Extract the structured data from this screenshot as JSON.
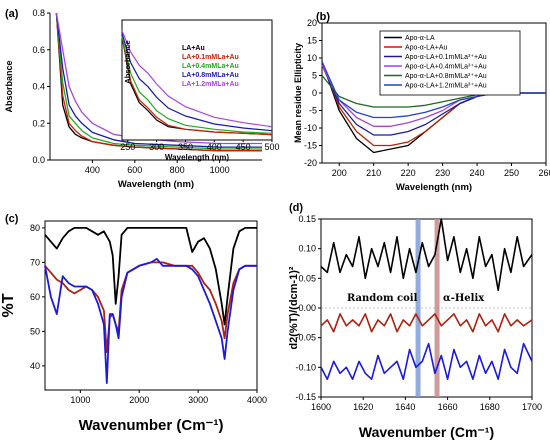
{
  "chart_data": [
    {
      "panel": "(a)",
      "type": "line",
      "xlabel": "Wavelength (nm)",
      "ylabel": "Absorbance",
      "xlim": [
        200,
        1200
      ],
      "ylim": [
        0,
        0.8
      ],
      "xticks": [
        400,
        600,
        800,
        1000
      ],
      "yticks": [
        0.0,
        0.2,
        0.4,
        0.6,
        0.8
      ],
      "legend_position": "top-right",
      "series": [
        {
          "name": "LA+Au",
          "color": "#000000",
          "x": [
            230,
            260,
            290,
            320,
            350,
            400,
            500,
            600,
            800,
            1000,
            1200
          ],
          "y": [
            0.8,
            0.3,
            0.18,
            0.14,
            0.12,
            0.1,
            0.08,
            0.07,
            0.06,
            0.05,
            0.05
          ]
        },
        {
          "name": "LA+0.1mMLa+Au",
          "color": "#cc2200",
          "x": [
            230,
            260,
            290,
            320,
            350,
            400,
            500,
            600,
            800,
            1000,
            1200
          ],
          "y": [
            0.8,
            0.35,
            0.2,
            0.16,
            0.13,
            0.1,
            0.08,
            0.07,
            0.06,
            0.05,
            0.05
          ]
        },
        {
          "name": "LA+0.4mMLa+Au",
          "color": "#22aa22",
          "x": [
            230,
            260,
            290,
            320,
            350,
            400,
            500,
            600,
            800,
            1000,
            1200
          ],
          "y": [
            0.8,
            0.42,
            0.24,
            0.2,
            0.16,
            0.12,
            0.09,
            0.08,
            0.07,
            0.06,
            0.06
          ]
        },
        {
          "name": "LA+0.8mMLa+Au",
          "color": "#1a1aaa",
          "x": [
            230,
            260,
            290,
            320,
            350,
            400,
            500,
            600,
            800,
            1000,
            1200
          ],
          "y": [
            0.8,
            0.5,
            0.3,
            0.24,
            0.2,
            0.15,
            0.11,
            0.09,
            0.08,
            0.07,
            0.07
          ]
        },
        {
          "name": "LA+1.2mMLa+Au",
          "color": "#aa44dd",
          "x": [
            230,
            260,
            290,
            320,
            350,
            400,
            500,
            600,
            800,
            1000,
            1200
          ],
          "y": [
            0.8,
            0.6,
            0.4,
            0.32,
            0.26,
            0.2,
            0.14,
            0.12,
            0.1,
            0.09,
            0.09
          ]
        }
      ],
      "inset": {
        "xlabel": "Wavelength (nm)",
        "ylabel": "Absorbance",
        "xlim": [
          240,
          500
        ],
        "xticks": [
          250,
          300,
          350,
          400,
          450,
          500
        ],
        "series": [
          {
            "name": "LA+Au",
            "color": "#000000",
            "x": [
              240,
              255,
              270,
              285,
              300,
              320,
              350,
              400,
              450,
              500
            ],
            "y": [
              0.78,
              0.42,
              0.28,
              0.22,
              0.15,
              0.1,
              0.08,
              0.06,
              0.05,
              0.04
            ]
          },
          {
            "name": "LA+0.1mMLa+Au",
            "color": "#cc2200",
            "x": [
              240,
              255,
              270,
              285,
              300,
              320,
              350,
              400,
              450,
              500
            ],
            "y": [
              0.78,
              0.44,
              0.3,
              0.24,
              0.17,
              0.11,
              0.08,
              0.06,
              0.05,
              0.04
            ]
          },
          {
            "name": "LA+0.4mMLa+Au",
            "color": "#22aa22",
            "x": [
              240,
              255,
              270,
              285,
              300,
              320,
              350,
              400,
              450,
              500
            ],
            "y": [
              0.78,
              0.5,
              0.36,
              0.3,
              0.22,
              0.16,
              0.11,
              0.08,
              0.06,
              0.05
            ]
          },
          {
            "name": "LA+0.8mMLa+Au",
            "color": "#1a1aaa",
            "x": [
              240,
              255,
              270,
              285,
              300,
              320,
              350,
              400,
              450,
              500
            ],
            "y": [
              0.8,
              0.58,
              0.46,
              0.4,
              0.32,
              0.24,
              0.18,
              0.12,
              0.09,
              0.07
            ]
          },
          {
            "name": "LA+1.2mMLa+Au",
            "color": "#aa44dd",
            "x": [
              240,
              255,
              270,
              285,
              300,
              320,
              350,
              400,
              450,
              500
            ],
            "y": [
              0.82,
              0.66,
              0.56,
              0.5,
              0.42,
              0.33,
              0.25,
              0.17,
              0.13,
              0.1
            ]
          }
        ]
      }
    },
    {
      "panel": "(b)",
      "type": "line",
      "xlabel": "Wavelength (nm)",
      "ylabel": "Mean residue Ellipticity",
      "xlim": [
        195,
        260
      ],
      "ylim": [
        -20,
        20
      ],
      "xticks": [
        200,
        210,
        220,
        230,
        240,
        250,
        260
      ],
      "yticks": [
        -20,
        -15,
        -10,
        -5,
        0,
        5,
        10,
        15,
        20
      ],
      "legend_position": "top-right",
      "series": [
        {
          "name": "Apo-α-LA",
          "color": "#000000",
          "x": [
            195,
            200,
            205,
            210,
            215,
            220,
            225,
            230,
            235,
            240,
            245,
            250,
            255,
            260
          ],
          "y": [
            9,
            -5,
            -13,
            -17,
            -16,
            -15,
            -11,
            -7,
            -3,
            -1,
            0,
            0,
            0,
            0
          ]
        },
        {
          "name": "Apo-α-LA+Au",
          "color": "#bb2200",
          "x": [
            195,
            200,
            205,
            210,
            215,
            220,
            225,
            230,
            235,
            240,
            245,
            250,
            255,
            260
          ],
          "y": [
            9,
            -4,
            -11,
            -15,
            -15,
            -14,
            -11,
            -7,
            -3,
            -1,
            0,
            0,
            0,
            0
          ]
        },
        {
          "name": "Apo-α-LA+0.1mMLa³⁺+Au",
          "color": "#1a1a99",
          "x": [
            195,
            200,
            205,
            210,
            215,
            220,
            225,
            230,
            235,
            240,
            245,
            250,
            255,
            260
          ],
          "y": [
            8,
            -3,
            -9,
            -12,
            -12,
            -11,
            -9,
            -6,
            -3,
            -1,
            0,
            0,
            0,
            0
          ]
        },
        {
          "name": "Apo-α-LA+0.4mMLa³⁺+Au",
          "color": "#aa44cc",
          "x": [
            195,
            200,
            205,
            210,
            215,
            220,
            225,
            230,
            235,
            240,
            245,
            250,
            255,
            260
          ],
          "y": [
            8,
            -2,
            -7,
            -9.5,
            -9.5,
            -8.5,
            -7,
            -5,
            -2,
            -1,
            0,
            0,
            0,
            0
          ]
        },
        {
          "name": "Apo-α-LA+0.8mMLa³⁺+Au",
          "color": "#226622",
          "x": [
            195,
            200,
            205,
            210,
            215,
            220,
            225,
            230,
            235,
            240,
            245,
            250,
            255,
            260
          ],
          "y": [
            5,
            -1,
            -3,
            -4,
            -4,
            -4,
            -3.5,
            -2.5,
            -1.5,
            -0.5,
            0,
            0,
            0,
            0
          ]
        },
        {
          "name": "Apo-α-LA+1.2mMLa³⁺+Au",
          "color": "#2244cc",
          "x": [
            195,
            200,
            205,
            210,
            215,
            220,
            225,
            230,
            235,
            240,
            245,
            250,
            255,
            260
          ],
          "y": [
            9,
            -2,
            -5.5,
            -7,
            -7,
            -6.5,
            -5.5,
            -4,
            -2,
            -1,
            0,
            0,
            0,
            0
          ]
        }
      ]
    },
    {
      "panel": "(c)",
      "type": "line",
      "xlabel": "Wavenumber (Cm⁻¹)",
      "ylabel": "%T",
      "xlim": [
        400,
        4000
      ],
      "ylim": [
        33,
        82
      ],
      "xticks": [
        1000,
        2000,
        3000,
        4000
      ],
      "yticks": [
        40,
        50,
        60,
        70,
        80
      ],
      "series": [
        {
          "name": "",
          "color": "#000000",
          "x": [
            400,
            500,
            600,
            700,
            800,
            900,
            1000,
            1100,
            1200,
            1300,
            1400,
            1500,
            1550,
            1600,
            1650,
            1700,
            1800,
            2000,
            2100,
            2200,
            2400,
            2600,
            2800,
            2900,
            3000,
            3100,
            3200,
            3300,
            3400,
            3450,
            3500,
            3600,
            3700,
            3800,
            4000
          ],
          "y": [
            78,
            76,
            74,
            77,
            79,
            80,
            80,
            80,
            79,
            78,
            79,
            76,
            72,
            58,
            66,
            78,
            80,
            80,
            80,
            80,
            80,
            80,
            80,
            73,
            76,
            77,
            74,
            68,
            58,
            52,
            60,
            74,
            79,
            80,
            80
          ]
        },
        {
          "name": "",
          "color": "#b02010",
          "x": [
            400,
            500,
            600,
            700,
            800,
            900,
            1000,
            1100,
            1200,
            1300,
            1400,
            1450,
            1500,
            1550,
            1600,
            1650,
            1700,
            1800,
            2000,
            2200,
            2400,
            2600,
            2800,
            2900,
            3000,
            3100,
            3200,
            3300,
            3400,
            3450,
            3500,
            3600,
            3700,
            3800,
            4000
          ],
          "y": [
            69,
            67,
            65,
            64,
            62,
            61,
            62,
            63,
            62,
            60,
            56,
            44,
            54,
            55,
            52,
            50,
            62,
            67,
            69,
            70,
            70,
            69,
            69,
            69,
            67,
            64,
            62,
            58,
            53,
            48,
            55,
            64,
            68,
            69,
            69
          ]
        },
        {
          "name": "",
          "color": "#1a1adc",
          "x": [
            400,
            500,
            600,
            700,
            800,
            900,
            1000,
            1100,
            1200,
            1300,
            1400,
            1450,
            1500,
            1550,
            1600,
            1650,
            1700,
            1800,
            2000,
            2200,
            2300,
            2400,
            2600,
            2800,
            2900,
            3000,
            3100,
            3200,
            3300,
            3400,
            3450,
            3500,
            3600,
            3700,
            3800,
            4000
          ],
          "y": [
            69,
            60,
            55,
            66,
            64,
            63,
            63,
            63,
            62,
            58,
            52,
            35,
            55,
            55,
            52,
            48,
            60,
            67,
            69,
            70,
            71,
            69,
            69,
            69,
            68,
            66,
            62,
            58,
            53,
            48,
            42,
            50,
            62,
            68,
            69,
            69
          ]
        }
      ]
    },
    {
      "panel": "(d)",
      "type": "line",
      "xlabel": "Wavenumber (Cm⁻¹)",
      "ylabel": "d2(%T)/(dcm-1)²",
      "xlim": [
        1600,
        1700
      ],
      "ylim": [
        -0.15,
        0.15
      ],
      "xticks": [
        1600,
        1620,
        1640,
        1660,
        1680,
        1700
      ],
      "yticks": [
        -0.15,
        -0.1,
        -0.05,
        0.0,
        0.05,
        0.1,
        0.15
      ],
      "annotations": [
        "Random coil",
        "α-Helix"
      ],
      "highlight_bands": [
        {
          "x": 1646,
          "color": "#7f9ed8"
        },
        {
          "x": 1655,
          "color": "#c98a8a"
        }
      ],
      "series": [
        {
          "name": "",
          "color": "#000000",
          "x": [
            1600,
            1603,
            1606,
            1609,
            1612,
            1615,
            1618,
            1621,
            1624,
            1627,
            1630,
            1633,
            1636,
            1639,
            1642,
            1645,
            1648,
            1651,
            1654,
            1657,
            1660,
            1663,
            1666,
            1669,
            1672,
            1675,
            1678,
            1681,
            1684,
            1687,
            1690,
            1693,
            1696,
            1700
          ],
          "y": [
            0.07,
            0.06,
            0.11,
            0.06,
            0.09,
            0.07,
            0.12,
            0.05,
            0.1,
            0.07,
            0.11,
            0.06,
            0.12,
            0.05,
            0.1,
            0.06,
            0.11,
            0.07,
            0.09,
            0.15,
            0.08,
            0.12,
            0.06,
            0.1,
            0.05,
            0.12,
            0.07,
            0.09,
            0.03,
            0.1,
            0.06,
            0.12,
            0.07,
            0.09
          ]
        },
        {
          "name": "",
          "color": "#b02010",
          "x": [
            1600,
            1603,
            1606,
            1609,
            1612,
            1615,
            1618,
            1621,
            1624,
            1627,
            1630,
            1633,
            1636,
            1639,
            1642,
            1645,
            1648,
            1651,
            1654,
            1657,
            1660,
            1663,
            1666,
            1669,
            1672,
            1675,
            1678,
            1681,
            1684,
            1687,
            1690,
            1693,
            1696,
            1700
          ],
          "y": [
            -0.03,
            -0.02,
            -0.04,
            -0.01,
            -0.03,
            -0.02,
            -0.03,
            -0.01,
            -0.04,
            -0.02,
            -0.03,
            -0.01,
            -0.04,
            -0.02,
            -0.03,
            -0.01,
            -0.03,
            -0.02,
            -0.01,
            -0.03,
            -0.02,
            -0.01,
            -0.03,
            -0.02,
            -0.04,
            -0.01,
            -0.03,
            -0.02,
            -0.04,
            -0.01,
            -0.03,
            -0.02,
            -0.03,
            -0.02
          ]
        },
        {
          "name": "",
          "color": "#1a1adc",
          "x": [
            1600,
            1603,
            1606,
            1609,
            1612,
            1615,
            1618,
            1621,
            1624,
            1627,
            1630,
            1633,
            1636,
            1639,
            1642,
            1645,
            1648,
            1651,
            1654,
            1657,
            1660,
            1663,
            1666,
            1669,
            1672,
            1675,
            1678,
            1681,
            1684,
            1687,
            1690,
            1693,
            1696,
            1700
          ],
          "y": [
            -0.1,
            -0.12,
            -0.09,
            -0.11,
            -0.1,
            -0.12,
            -0.09,
            -0.11,
            -0.12,
            -0.08,
            -0.11,
            -0.1,
            -0.09,
            -0.12,
            -0.07,
            -0.1,
            -0.09,
            -0.06,
            -0.11,
            -0.08,
            -0.12,
            -0.07,
            -0.1,
            -0.09,
            -0.12,
            -0.08,
            -0.11,
            -0.09,
            -0.12,
            -0.07,
            -0.1,
            -0.11,
            -0.06,
            -0.09
          ]
        }
      ]
    }
  ]
}
